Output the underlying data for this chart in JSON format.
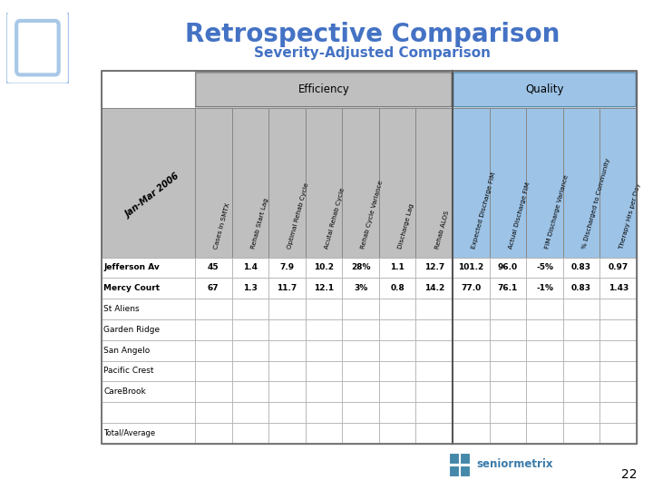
{
  "title": "Retrospective Comparison",
  "subtitle": "Severity-Adjusted Comparison",
  "title_color": "#4472C4",
  "subtitle_color": "#4472C4",
  "efficiency_header": "Efficiency",
  "quality_header": "Quality",
  "efficiency_bg": "#BFBFBF",
  "quality_bg": "#9DC3E6",
  "col_headers_rotated": [
    "Cases In SMTX",
    "Rehab Start Lag",
    "Optimal Rehab Cycle",
    "Acutal Rehab Cycle",
    "Rehab Cycle Variance",
    "Discharge Lag",
    "Rehab ALOS",
    "Expected Discharge FIM",
    "Actual Discharge FIM",
    "FIM Discharge Variance",
    "% Discharged to Community",
    "Therapy Hrs per Day"
  ],
  "row_label_header": "Jan-Mar 2006",
  "row_labels": [
    "Jefferson Av",
    "Mercy Court",
    "St Aliens",
    "Garden Ridge",
    "San Angelo",
    "Pacific Crest",
    "CareBrook",
    "",
    "Total/Average"
  ],
  "row_bold": [
    true,
    true,
    false,
    false,
    false,
    false,
    false,
    false,
    false
  ],
  "data": [
    [
      "45",
      "1.4",
      "7.9",
      "10.2",
      "28%",
      "1.1",
      "12.7",
      "101.2",
      "96.0",
      "-5%",
      "0.83",
      "0.97"
    ],
    [
      "67",
      "1.3",
      "11.7",
      "12.1",
      "3%",
      "0.8",
      "14.2",
      "77.0",
      "76.1",
      "-1%",
      "0.83",
      "1.43"
    ],
    [
      "",
      "",
      "",
      "",
      "",
      "",
      "",
      "",
      "",
      "",
      "",
      ""
    ],
    [
      "",
      "",
      "",
      "",
      "",
      "",
      "",
      "",
      "",
      "",
      "",
      ""
    ],
    [
      "",
      "",
      "",
      "",
      "",
      "",
      "",
      "",
      "",
      "",
      "",
      ""
    ],
    [
      "",
      "",
      "",
      "",
      "",
      "",
      "",
      "",
      "",
      "",
      "",
      ""
    ],
    [
      "",
      "",
      "",
      "",
      "",
      "",
      "",
      "",
      "",
      "",
      "",
      ""
    ],
    [
      "",
      "",
      "",
      "",
      "",
      "",
      "",
      "",
      "",
      "",
      "",
      ""
    ],
    [
      "",
      "",
      "",
      "",
      "",
      "",
      "",
      "",
      "",
      "",
      "",
      ""
    ]
  ],
  "num_efficiency_cols": 7,
  "num_quality_cols": 5,
  "page_number": "22",
  "logo_text": "seniormetrix",
  "background_color": "#FFFFFF"
}
